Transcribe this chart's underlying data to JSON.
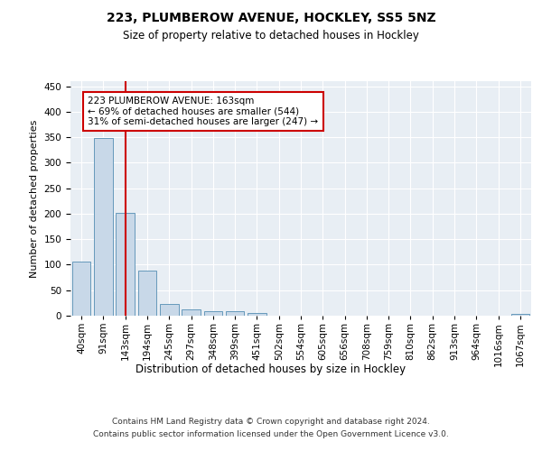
{
  "title": "223, PLUMBEROW AVENUE, HOCKLEY, SS5 5NZ",
  "subtitle": "Size of property relative to detached houses in Hockley",
  "xlabel": "Distribution of detached houses by size in Hockley",
  "ylabel": "Number of detached properties",
  "bar_color": "#c8d8e8",
  "bar_edge_color": "#6699bb",
  "categories": [
    "40sqm",
    "91sqm",
    "143sqm",
    "194sqm",
    "245sqm",
    "297sqm",
    "348sqm",
    "399sqm",
    "451sqm",
    "502sqm",
    "554sqm",
    "605sqm",
    "656sqm",
    "708sqm",
    "759sqm",
    "810sqm",
    "862sqm",
    "913sqm",
    "964sqm",
    "1016sqm",
    "1067sqm"
  ],
  "values": [
    107,
    348,
    202,
    88,
    23,
    13,
    8,
    8,
    5,
    0,
    0,
    0,
    0,
    0,
    0,
    0,
    0,
    0,
    0,
    0,
    4
  ],
  "vline_x": 2,
  "vline_color": "#cc0000",
  "annotation_text": "223 PLUMBEROW AVENUE: 163sqm\n← 69% of detached houses are smaller (544)\n31% of semi-detached houses are larger (247) →",
  "annotation_box_color": "white",
  "annotation_box_edge": "#cc0000",
  "ylim": [
    0,
    460
  ],
  "yticks": [
    0,
    50,
    100,
    150,
    200,
    250,
    300,
    350,
    400,
    450
  ],
  "footer_line1": "Contains HM Land Registry data © Crown copyright and database right 2024.",
  "footer_line2": "Contains public sector information licensed under the Open Government Licence v3.0.",
  "bg_color": "#e8eef4",
  "grid_color": "white",
  "fig_width": 6.0,
  "fig_height": 5.0,
  "title_fontsize": 10,
  "subtitle_fontsize": 8.5,
  "ylabel_fontsize": 8,
  "xlabel_fontsize": 8.5,
  "tick_fontsize": 7.5,
  "annotation_fontsize": 7.5,
  "footer_fontsize": 6.5
}
